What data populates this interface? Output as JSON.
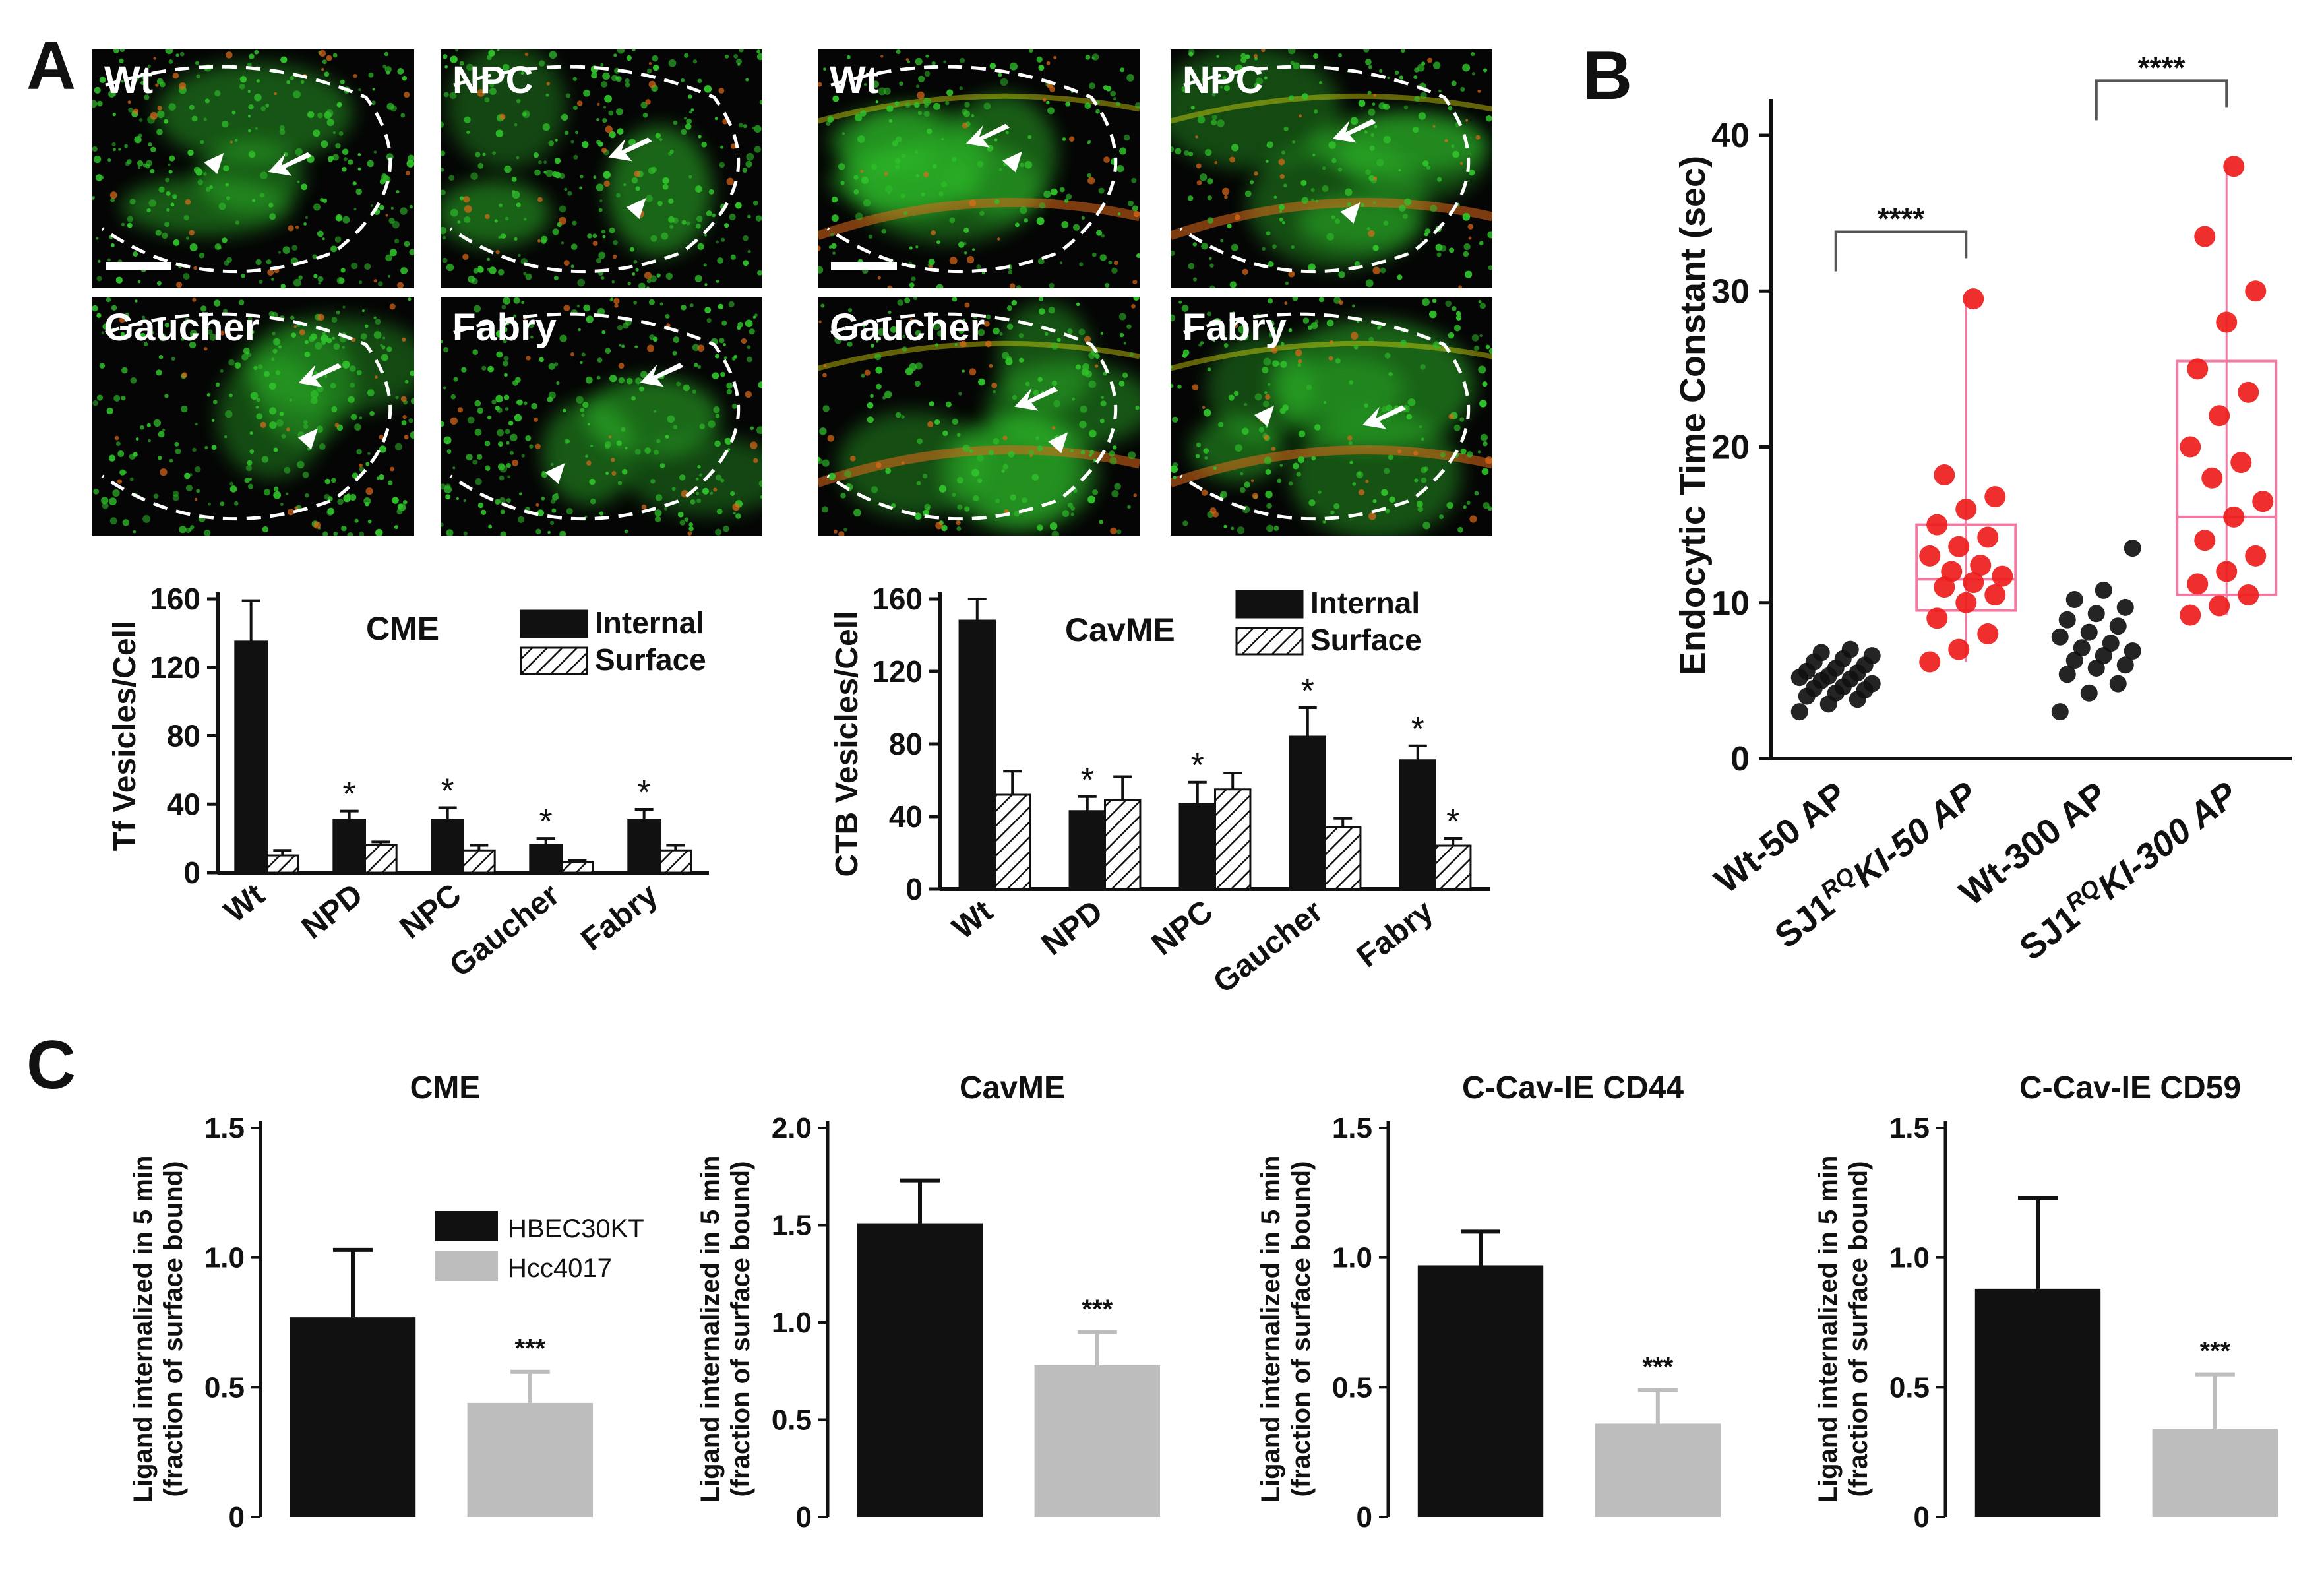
{
  "colors": {
    "black": "#111111",
    "gray": "#bdbdbd",
    "red": "#ee1c1c",
    "micro_green": "#2fbf2a",
    "micro_orange": "#e06a1a",
    "micro_yellow": "#d8d410"
  },
  "panels": {
    "A": {
      "letter": "A",
      "clathrin_images": [
        {
          "label": "Wt",
          "scale_bar": true
        },
        {
          "label": "NPC",
          "scale_bar": false
        },
        {
          "label": "Gaucher",
          "scale_bar": false
        },
        {
          "label": "Fabry",
          "scale_bar": false
        }
      ],
      "caveolae_images": [
        {
          "label": "Wt",
          "scale_bar": true
        },
        {
          "label": "NPC",
          "scale_bar": false
        },
        {
          "label": "Gaucher",
          "scale_bar": false
        },
        {
          "label": "Fabry",
          "scale_bar": false
        }
      ]
    },
    "B": {
      "letter": "B"
    },
    "C": {
      "letter": "C"
    }
  },
  "chart_data": [
    {
      "id": "A1",
      "type": "bar",
      "title": "CME",
      "ylabel": "Tf Vesicles/Cell",
      "ylim": [
        0,
        160
      ],
      "yticks": [
        "0",
        "40",
        "80",
        "120",
        "160"
      ],
      "ytick_values": [
        0,
        40,
        80,
        120,
        160
      ],
      "categories": [
        "Wt",
        "NPD",
        "NPC",
        "Gaucher",
        "Fabry"
      ],
      "legend": [
        "Internal",
        "Surface"
      ],
      "series": [
        {
          "name": "Internal",
          "values": [
            135,
            31,
            31,
            16,
            31
          ],
          "errors": [
            24,
            5,
            7,
            4,
            6
          ],
          "stars": [
            "",
            "*",
            "*",
            "*",
            "*"
          ]
        },
        {
          "name": "Surface",
          "values": [
            10,
            16,
            13,
            6,
            13
          ],
          "errors": [
            3,
            2,
            3,
            1,
            3
          ],
          "stars": [
            "",
            "",
            "",
            "",
            ""
          ]
        }
      ]
    },
    {
      "id": "A2",
      "type": "bar",
      "title": "CavME",
      "ylabel": "CTB Vesicles/Cell",
      "ylim": [
        0,
        160
      ],
      "yticks": [
        "0",
        "40",
        "80",
        "120",
        "160"
      ],
      "ytick_values": [
        0,
        40,
        80,
        120,
        160
      ],
      "categories": [
        "Wt",
        "NPD",
        "NPC",
        "Gaucher",
        "Fabry"
      ],
      "legend": [
        "Internal",
        "Surface"
      ],
      "series": [
        {
          "name": "Internal",
          "values": [
            148,
            43,
            47,
            84,
            71
          ],
          "errors": [
            12,
            8,
            12,
            16,
            8
          ],
          "stars": [
            "",
            "*",
            "*",
            "*",
            "*"
          ]
        },
        {
          "name": "Surface",
          "values": [
            52,
            49,
            55,
            34,
            24
          ],
          "errors": [
            13,
            13,
            9,
            5,
            4
          ],
          "stars": [
            "",
            "",
            "",
            "",
            "*"
          ]
        }
      ]
    },
    {
      "id": "B",
      "type": "scatter",
      "ylabel": "Endocytic Time Constant (sec)",
      "ylim": [
        0,
        40
      ],
      "yticks": [
        "0",
        "10",
        "20",
        "30",
        "40"
      ],
      "ytick_values": [
        0,
        10,
        20,
        30,
        40
      ],
      "categories": [
        "Wt-50 AP",
        "SJ1RQKI-50 AP",
        "Wt-300 AP",
        "SJ1RQKI-300 AP"
      ],
      "category_parts": [
        {
          "a": "Wt-50 AP",
          "sup": "",
          "b": ""
        },
        {
          "a": "SJ1",
          "sup": "RQ",
          "b": "KI-50 AP"
        },
        {
          "a": "Wt-300 AP",
          "sup": "",
          "b": ""
        },
        {
          "a": "SJ1",
          "sup": "RQ",
          "b": "KI-300 AP"
        }
      ],
      "groups": [
        {
          "color": "black",
          "points": [
            3.0,
            3.5,
            3.8,
            4.0,
            4.2,
            4.4,
            4.5,
            4.6,
            4.8,
            5.0,
            5.1,
            5.2,
            5.3,
            5.5,
            5.6,
            5.8,
            6.0,
            6.2,
            6.4,
            6.6,
            6.8,
            7.0
          ],
          "box": null
        },
        {
          "color": "red",
          "points": [
            6.2,
            7.0,
            8.0,
            9.0,
            10.0,
            10.5,
            11.0,
            11.3,
            11.7,
            12.0,
            12.4,
            13.0,
            13.6,
            14.2,
            15.0,
            16.0,
            16.8,
            18.2,
            29.5
          ],
          "box": {
            "min": 6.2,
            "q1": 9.5,
            "median": 11.5,
            "q3": 15.0,
            "max": 29.5
          }
        },
        {
          "color": "black",
          "points": [
            3.0,
            4.2,
            4.8,
            5.4,
            5.8,
            6.0,
            6.3,
            6.6,
            6.9,
            7.1,
            7.4,
            7.8,
            8.1,
            8.5,
            8.9,
            9.3,
            9.7,
            10.2,
            10.8,
            13.5
          ],
          "box": null
        },
        {
          "color": "red",
          "points": [
            9.2,
            9.8,
            10.5,
            11.2,
            12.0,
            13.0,
            14.0,
            15.5,
            16.5,
            18.0,
            19.0,
            20.0,
            22.0,
            23.5,
            25.0,
            28.0,
            30.0,
            33.5,
            38.0
          ],
          "box": {
            "min": 9.2,
            "q1": 10.5,
            "median": 15.5,
            "q3": 25.5,
            "max": 38.0
          }
        }
      ],
      "significance": [
        {
          "from": 0,
          "to": 1,
          "label": "****",
          "y": 33.8
        },
        {
          "from": 2,
          "to": 3,
          "label": "****",
          "y": 43.5
        }
      ]
    },
    {
      "id": "C1",
      "type": "bar",
      "title": "CME",
      "ylabel": [
        "Ligand internalized in 5 min",
        "(fraction of surface bound)"
      ],
      "ylim": [
        0,
        1.5
      ],
      "yticks": [
        "0",
        "0.5",
        "1.0",
        "1.5"
      ],
      "ytick_values": [
        0,
        0.5,
        1.0,
        1.5
      ],
      "legend": [
        "HBEC30KT",
        "Hcc4017"
      ],
      "series": [
        {
          "name": "HBEC30KT",
          "value": 0.77,
          "error": 0.26,
          "stars": ""
        },
        {
          "name": "Hcc4017",
          "value": 0.44,
          "error": 0.12,
          "stars": "***"
        }
      ]
    },
    {
      "id": "C2",
      "type": "bar",
      "title": "CavME",
      "ylabel": [
        "Ligand internalized in 5 min",
        "(fraction of surface bound)"
      ],
      "ylim": [
        0,
        2.0
      ],
      "yticks": [
        "0",
        "0.5",
        "1.0",
        "1.5",
        "2.0"
      ],
      "ytick_values": [
        0,
        0.5,
        1.0,
        1.5,
        2.0
      ],
      "legend": [],
      "series": [
        {
          "name": "HBEC30KT",
          "value": 1.51,
          "error": 0.22,
          "stars": ""
        },
        {
          "name": "Hcc4017",
          "value": 0.78,
          "error": 0.17,
          "stars": "***"
        }
      ]
    },
    {
      "id": "C3",
      "type": "bar",
      "title": "C-Cav-IE CD44",
      "ylabel": [
        "Ligand internalized in 5 min",
        "(fraction of surface bound)"
      ],
      "ylim": [
        0,
        1.5
      ],
      "yticks": [
        "0",
        "0.5",
        "1.0",
        "1.5"
      ],
      "ytick_values": [
        0,
        0.5,
        1.0,
        1.5
      ],
      "legend": [],
      "series": [
        {
          "name": "HBEC30KT",
          "value": 0.97,
          "error": 0.13,
          "stars": ""
        },
        {
          "name": "Hcc4017",
          "value": 0.36,
          "error": 0.13,
          "stars": "***"
        }
      ]
    },
    {
      "id": "C4",
      "type": "bar",
      "title": "C-Cav-IE CD59",
      "ylabel": [
        "Ligand internalized in 5 min",
        "(fraction of surface bound)"
      ],
      "ylim": [
        0,
        1.5
      ],
      "yticks": [
        "0",
        "0.5",
        "1.0",
        "1.5"
      ],
      "ytick_values": [
        0,
        0.5,
        1.0,
        1.5
      ],
      "legend": [],
      "series": [
        {
          "name": "HBEC30KT",
          "value": 0.88,
          "error": 0.35,
          "stars": ""
        },
        {
          "name": "Hcc4017",
          "value": 0.34,
          "error": 0.21,
          "stars": "***"
        }
      ]
    }
  ]
}
